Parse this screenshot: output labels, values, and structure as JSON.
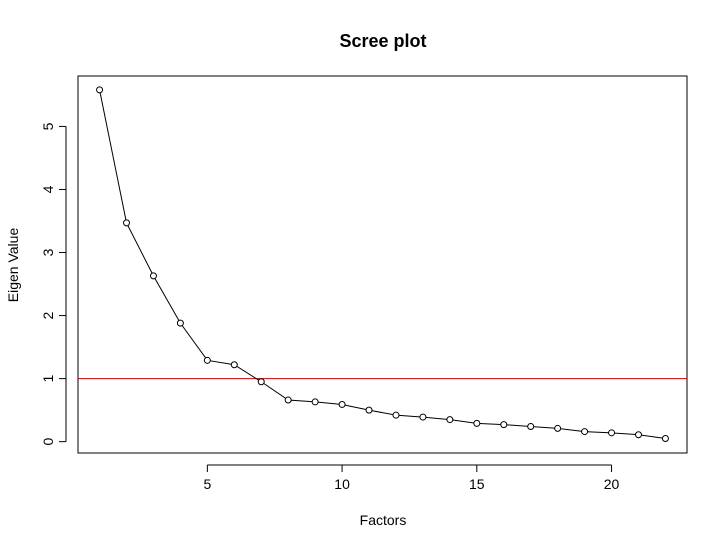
{
  "chart_data": {
    "type": "line",
    "title": "Scree plot",
    "xlabel": "Factors",
    "ylabel": "Eigen Value",
    "xlim": [
      0.2,
      22.8
    ],
    "ylim": [
      -0.18,
      5.8
    ],
    "xticks": [
      5,
      10,
      15,
      20
    ],
    "yticks": [
      0,
      1,
      2,
      3,
      4,
      5
    ],
    "grid": false,
    "legend": "none",
    "x": [
      1,
      2,
      3,
      4,
      5,
      6,
      7,
      8,
      9,
      10,
      11,
      12,
      13,
      14,
      15,
      16,
      17,
      18,
      19,
      20,
      21,
      22
    ],
    "series": [
      {
        "values": [
          5.58,
          3.47,
          2.63,
          1.88,
          1.29,
          1.22,
          0.95,
          0.66,
          0.63,
          0.59,
          0.5,
          0.42,
          0.39,
          0.35,
          0.29,
          0.27,
          0.24,
          0.21,
          0.16,
          0.14,
          0.11,
          0.05
        ],
        "color": "#000000",
        "marker": "open-circle"
      }
    ],
    "reference_line": {
      "y": 1,
      "color": "#cc0000"
    }
  }
}
